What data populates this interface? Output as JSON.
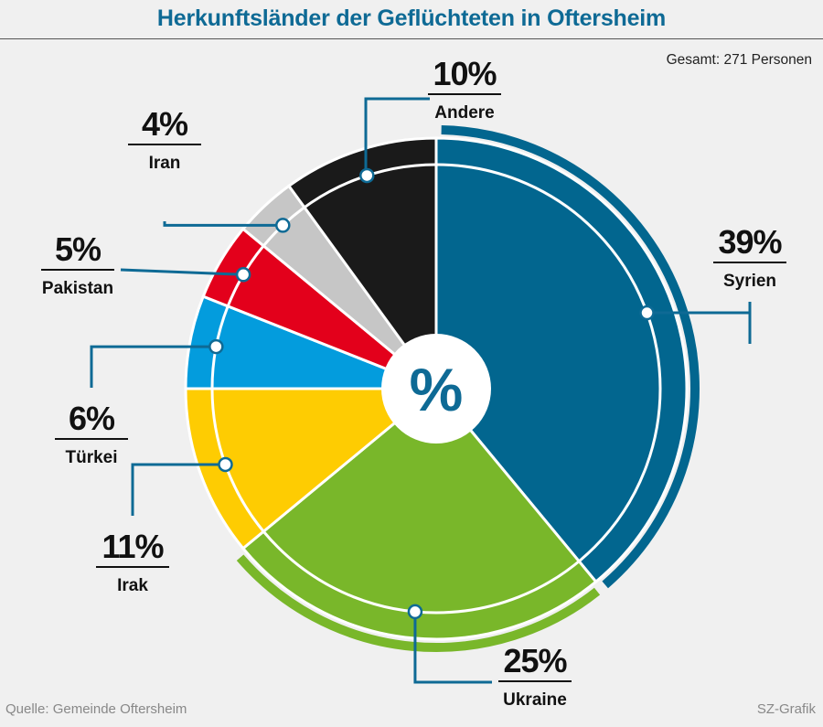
{
  "title": "Herkunftsländer der Geflüchteten in Oftersheim",
  "total": "Gesamt: 271 Personen",
  "source": "Quelle: Gemeinde Oftersheim",
  "credit": "SZ-Grafik",
  "center_symbol": "%",
  "chart_data": {
    "type": "pie",
    "title": "Herkunftsländer der Geflüchteten in Oftersheim",
    "start": "12 o'clock, clockwise",
    "series": [
      {
        "categories": [
          "Syrien",
          "Ukraine",
          "Irak",
          "Türkei",
          "Pakistan",
          "Iran",
          "Andere"
        ],
        "values": [
          39,
          25,
          11,
          6,
          5,
          4,
          10
        ],
        "labels": [
          "39%",
          "25%",
          "11%",
          "6%",
          "5%",
          "4%",
          "10%"
        ],
        "colors": [
          "#02668f",
          "#79b72a",
          "#fecc02",
          "#039cdd",
          "#e3001b",
          "#c6c6c6",
          "#1a1a1a"
        ]
      }
    ]
  }
}
